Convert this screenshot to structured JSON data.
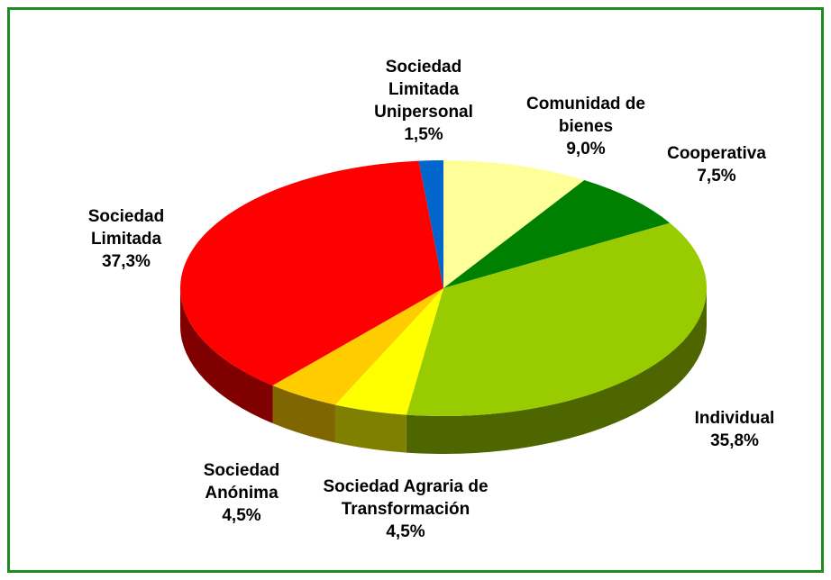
{
  "chart_data": {
    "type": "pie3d",
    "categories": [
      "Comunidad de bienes",
      "Cooperativa",
      "Individual",
      "Sociedad Agraria de Transformación",
      "Sociedad Anónima",
      "Sociedad Limitada",
      "Sociedad Limitada Unipersonal"
    ],
    "values": [
      9.0,
      7.5,
      35.8,
      4.5,
      4.5,
      37.3,
      1.5
    ],
    "value_labels": [
      "9,0%",
      "7,5%",
      "35,8%",
      "4,5%",
      "4,5%",
      "37,3%",
      "1,5%"
    ],
    "colors": [
      "#ffff99",
      "#008000",
      "#99cc00",
      "#ffff00",
      "#ffcc00",
      "#ff0000",
      "#0066cc"
    ],
    "side_colors": [
      "#80804d",
      "#004000",
      "#4d6600",
      "#808000",
      "#806600",
      "#800000",
      "#003366"
    ]
  }
}
